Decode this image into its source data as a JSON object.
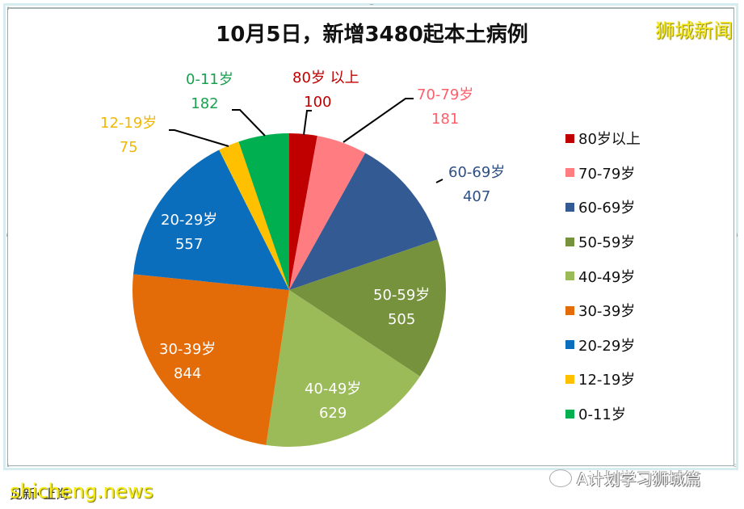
{
  "title": "10月5日，新增3480起本土病例",
  "watermark_top": "狮城新闻",
  "watermark_bottom": "shicheng.news",
  "footnote": "见新•上海",
  "wechat_account": "A计划学习狮城篇",
  "chart_data": {
    "type": "pie",
    "title": "10月5日，新增3480起本土病例",
    "total": 3480,
    "start_angle_deg": 0,
    "direction": "clockwise",
    "legend_position": "right",
    "categories": [
      "80岁以上",
      "70-79岁",
      "60-69岁",
      "50-59岁",
      "40-49岁",
      "30-39岁",
      "20-29岁",
      "12-19岁",
      "0-11岁"
    ],
    "values": [
      100,
      181,
      407,
      505,
      629,
      844,
      557,
      75,
      182
    ],
    "colors": [
      "#c00000",
      "#ff7c80",
      "#335a93",
      "#76923c",
      "#9bbb59",
      "#e36c09",
      "#0a6ebd",
      "#ffc000",
      "#00b050"
    ],
    "data_labels": [
      {
        "name": "80岁 以上",
        "value": "100"
      },
      {
        "name": "70-79岁",
        "value": "181"
      },
      {
        "name": "60-69岁",
        "value": "407"
      },
      {
        "name": "50-59岁",
        "value": "505"
      },
      {
        "name": "40-49岁",
        "value": "629"
      },
      {
        "name": "30-39岁",
        "value": "844"
      },
      {
        "name": "20-29岁",
        "value": "557"
      },
      {
        "name": "12-19岁",
        "value": "75"
      },
      {
        "name": "0-11岁",
        "value": "182"
      }
    ]
  },
  "legend": {
    "items": [
      {
        "label": "80岁以上",
        "color": "#c00000"
      },
      {
        "label": "70-79岁",
        "color": "#ff7c80"
      },
      {
        "label": "60-69岁",
        "color": "#335a93"
      },
      {
        "label": "50-59岁",
        "color": "#76923c"
      },
      {
        "label": "40-49岁",
        "color": "#9bbb59"
      },
      {
        "label": "30-39岁",
        "color": "#e36c09"
      },
      {
        "label": "20-29岁",
        "color": "#0a6ebd"
      },
      {
        "label": "12-19岁",
        "color": "#ffc000"
      },
      {
        "label": "0-11岁",
        "color": "#00b050"
      }
    ]
  }
}
